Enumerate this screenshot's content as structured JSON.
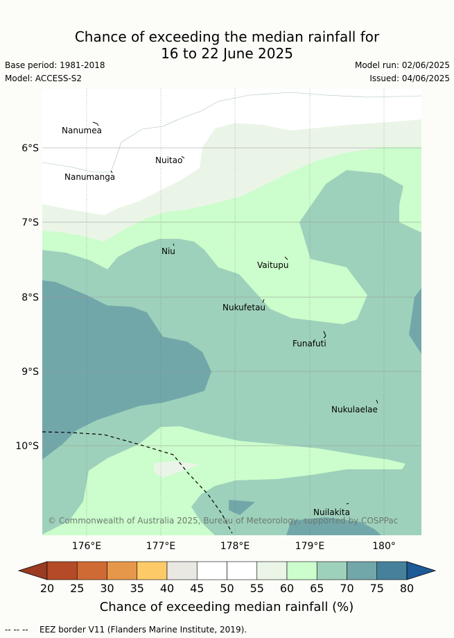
{
  "title": {
    "line1": "Chance of exceeding the median rainfall for",
    "line2": "16 to 22 June 2025"
  },
  "meta": {
    "base_period": "Base period: 1981-2018",
    "model": "Model: ACCESS-S2",
    "model_run": "Model run: 02/06/2025",
    "issued": "Issued: 04/06/2025"
  },
  "map": {
    "lon_ticks": [
      "176°E",
      "177°E",
      "178°E",
      "179°E",
      "180°"
    ],
    "lat_ticks": [
      "6°S",
      "7°S",
      "8°S",
      "9°S",
      "10°S"
    ],
    "places": [
      "Nanumea",
      "Nuitao",
      "Nanumanga",
      "Niu",
      "Vaitupu",
      "Nukufetau",
      "Funafuti",
      "Nukulaelae",
      "Nuilakita"
    ],
    "copyright": "© Commonwealth of Australia 2025, Bureau of Meteorology, supported by COSPPac"
  },
  "colorbar": {
    "ticks": [
      "20",
      "25",
      "30",
      "35",
      "40",
      "45",
      "50",
      "55",
      "60",
      "65",
      "70",
      "75",
      "80"
    ],
    "colors": [
      "#b44a27",
      "#d06a34",
      "#e6974a",
      "#fccb67",
      "#e9e8e3",
      "#ffffff",
      "#ffffff",
      "#eaf5e8",
      "#ccfdcc",
      "#9ed1bb",
      "#72a7aa",
      "#46819b",
      "#1d5a96"
    ],
    "under_color": "#9a3b22",
    "over_color": "#1d5a96",
    "title": "Chance of exceeding median rainfall (%)"
  },
  "footer": {
    "legend_text": "EEZ border V11 (Flanders Marine Institute, 2019)."
  }
}
